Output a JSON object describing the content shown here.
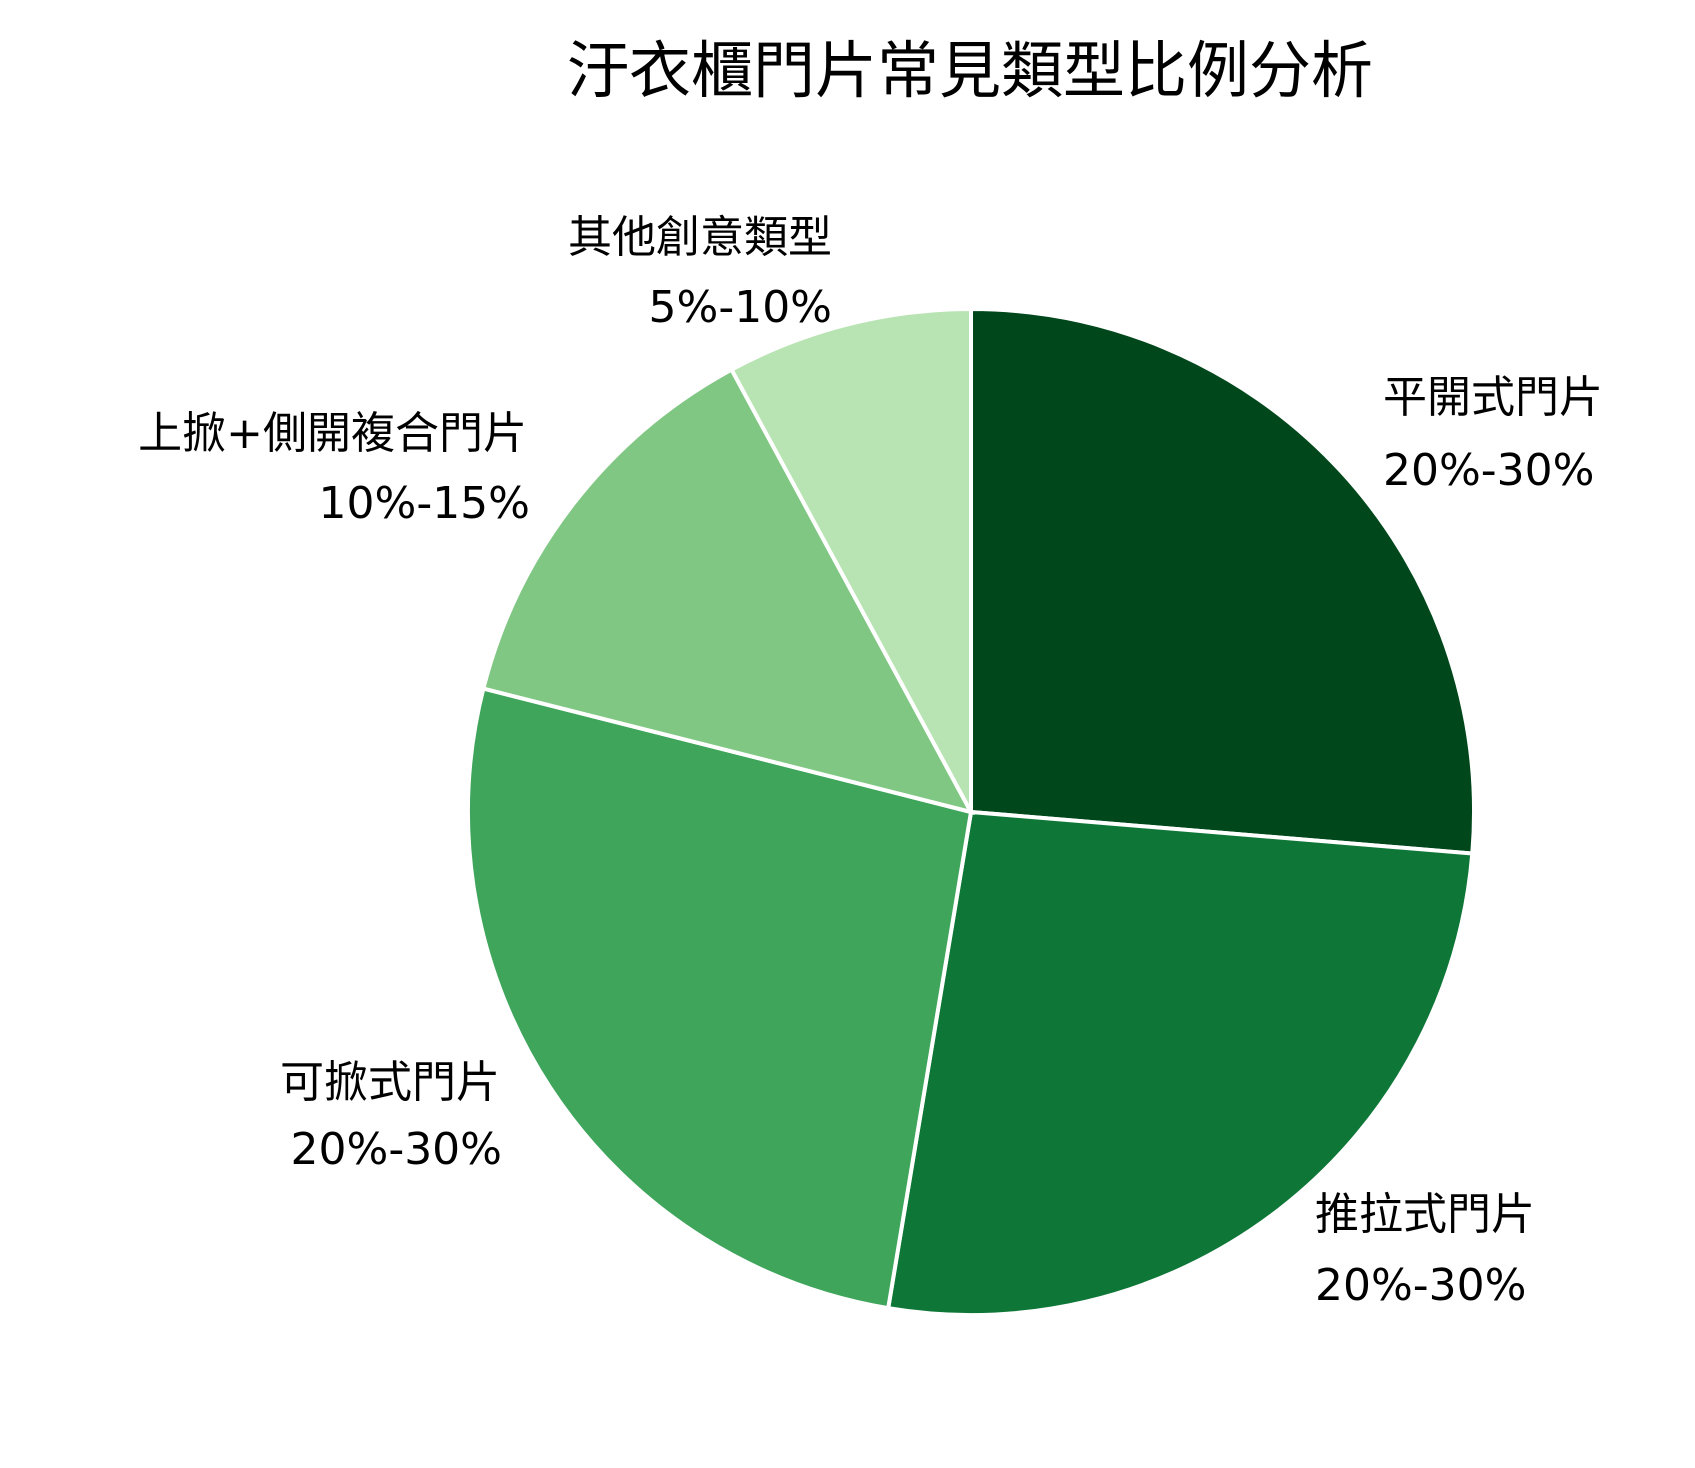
{
  "chart_data": {
    "type": "pie",
    "title": "汙衣櫃門片常見類型比例分析",
    "start_angle": "top",
    "direction": "clockwise",
    "slices": [
      {
        "name": "平開式門片",
        "range_label": "20%-30%",
        "value": 25,
        "color": "#00471b"
      },
      {
        "name": "推拉式門片",
        "range_label": "20%-30%",
        "value": 25,
        "color": "#0e7737"
      },
      {
        "name": "可掀式門片",
        "range_label": "20%-30%",
        "value": 25,
        "color": "#3ea55b"
      },
      {
        "name": "上掀+側開複合門片",
        "range_label": "10%-15%",
        "value": 12.5,
        "color": "#80c783"
      },
      {
        "name": "其他創意類型",
        "range_label": "5%-10%",
        "value": 7.5,
        "color": "#b8e3b2"
      }
    ],
    "slice_border_color": "#ffffff"
  }
}
